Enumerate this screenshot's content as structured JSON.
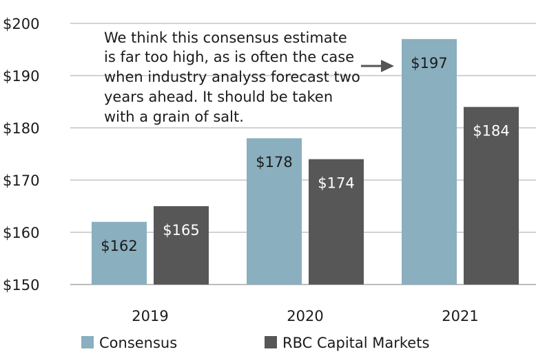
{
  "chart_data": {
    "type": "bar",
    "categories": [
      "2019",
      "2020",
      "2021"
    ],
    "series": [
      {
        "name": "Consensus",
        "values": [
          162,
          178,
          197
        ],
        "labels": [
          "$162",
          "$178",
          "$197"
        ],
        "color": "#8aafbf",
        "label_color": "#1a1a1a"
      },
      {
        "name": "RBC Capital Markets",
        "values": [
          165,
          174,
          184
        ],
        "labels": [
          "$165",
          "$174",
          "$184"
        ],
        "color": "#575757",
        "label_color": "#ffffff"
      }
    ],
    "yticks": [
      "$150",
      "$160",
      "$170",
      "$180",
      "$190",
      "$200"
    ],
    "ytick_values": [
      150,
      160,
      170,
      180,
      190,
      200
    ],
    "ylim": [
      150,
      200
    ],
    "grid": true,
    "gridline_color": "#a6a6a6",
    "legend_position": "bottom-left",
    "annotation": {
      "lines": [
        "We think this consensus estimate",
        "is far too high, as is often the case",
        "when industry analyss forecast two",
        "years ahead. It should be taken",
        "with a grain of salt."
      ],
      "arrow_target": "2021 Consensus"
    }
  }
}
